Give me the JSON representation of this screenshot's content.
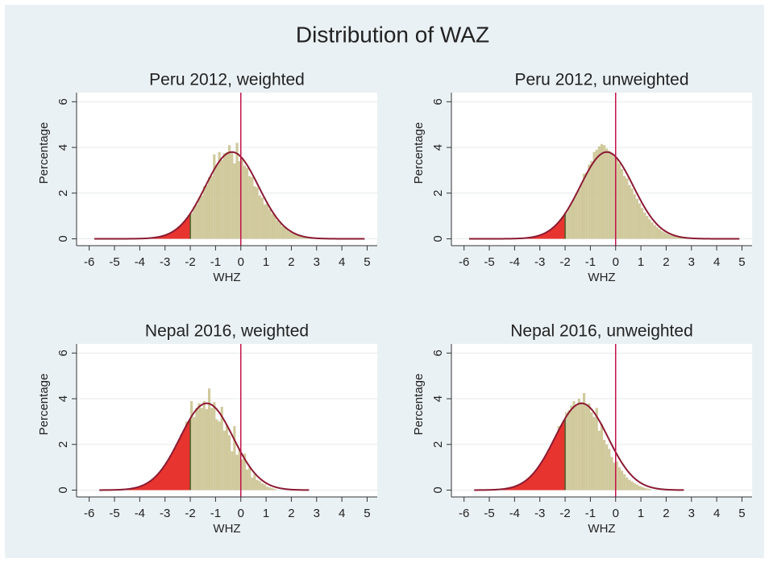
{
  "title": "Distribution of WAZ",
  "chart_data": [
    {
      "type": "histogram",
      "title": "Peru 2012, weighted",
      "xlabel": "WHZ",
      "ylabel": "Percentage",
      "bins": [
        -3.0,
        -2.9,
        -2.8,
        -2.7,
        -2.6,
        -2.5,
        -2.4,
        -2.3,
        -2.2,
        -2.1,
        -2.0,
        -1.9,
        -1.8,
        -1.7,
        -1.6,
        -1.5,
        -1.4,
        -1.3,
        -1.2,
        -1.1,
        -1.0,
        -0.9,
        -0.8,
        -0.7,
        -0.6,
        -0.5,
        -0.4,
        -0.3,
        -0.2,
        -0.1,
        0.0,
        0.1,
        0.2,
        0.3,
        0.4,
        0.5,
        0.6,
        0.7,
        0.8,
        0.9,
        1.0,
        1.1,
        1.2,
        1.3,
        1.4,
        1.5,
        1.6,
        1.7,
        1.8,
        1.9,
        2.0,
        2.1,
        2.2,
        2.3,
        2.4,
        2.5,
        2.6,
        2.7,
        2.8,
        2.9,
        3.0
      ],
      "values": [
        0.15,
        0.25,
        0.27,
        0.36,
        0.4,
        0.55,
        0.58,
        0.75,
        0.85,
        1.05,
        1.12,
        1.4,
        1.5,
        1.8,
        1.9,
        2.3,
        2.35,
        2.7,
        2.75,
        3.7,
        3.2,
        3.8,
        3.45,
        3.75,
        3.8,
        4.1,
        3.75,
        3.3,
        4.2,
        3.4,
        3.55,
        3.2,
        3.1,
        2.75,
        2.7,
        2.3,
        2.25,
        1.9,
        1.8,
        1.5,
        1.55,
        1.3,
        1.1,
        1.05,
        0.8,
        0.7,
        0.55,
        0.5,
        0.4,
        0.3,
        0.25,
        0.2,
        0.18,
        0.14,
        0.1,
        0.08,
        0.07,
        0.06,
        0.05,
        0.04
      ],
      "color": "#cbc391",
      "fit": {
        "mean": -0.35,
        "sd": 1.05,
        "range": [
          -5.8,
          4.9
        ],
        "color": "#8b1a33"
      },
      "cutoff": -2,
      "shade_color": "#e8342f",
      "reference_line": 0,
      "reference_color": "#c0144a",
      "xlim": [
        -6.5,
        5.4
      ],
      "ylim": [
        -0.3,
        6.4
      ],
      "xticks": [
        -6,
        -5,
        -4,
        -3,
        -2,
        -1,
        0,
        1,
        2,
        3,
        4,
        5
      ],
      "yticks": [
        0,
        2,
        4,
        6
      ],
      "grid": true
    },
    {
      "type": "histogram",
      "title": "Peru 2012, unweighted",
      "xlabel": "WHZ",
      "ylabel": "Percentage",
      "bins": [
        -3.0,
        -2.9,
        -2.8,
        -2.7,
        -2.6,
        -2.5,
        -2.4,
        -2.3,
        -2.2,
        -2.1,
        -2.0,
        -1.9,
        -1.8,
        -1.7,
        -1.6,
        -1.5,
        -1.4,
        -1.3,
        -1.2,
        -1.1,
        -1.0,
        -0.9,
        -0.8,
        -0.7,
        -0.6,
        -0.5,
        -0.4,
        -0.3,
        -0.2,
        -0.1,
        0.0,
        0.1,
        0.2,
        0.3,
        0.4,
        0.5,
        0.6,
        0.7,
        0.8,
        0.9,
        1.0,
        1.1,
        1.2,
        1.3,
        1.4,
        1.5,
        1.6,
        1.7,
        1.8,
        1.9,
        2.0,
        2.1,
        2.2,
        2.3,
        2.4,
        2.5,
        2.6,
        2.7,
        2.8,
        2.9,
        3.0
      ],
      "values": [
        0.16,
        0.22,
        0.28,
        0.33,
        0.42,
        0.5,
        0.6,
        0.75,
        0.85,
        1.0,
        1.15,
        1.35,
        1.55,
        1.75,
        2.0,
        2.15,
        2.4,
        2.85,
        2.9,
        3.25,
        3.4,
        3.8,
        3.9,
        4.05,
        4.15,
        4.1,
        3.95,
        3.85,
        3.75,
        3.6,
        3.5,
        3.3,
        3.05,
        2.75,
        2.65,
        2.35,
        2.2,
        1.95,
        1.75,
        1.55,
        1.35,
        1.15,
        1.0,
        0.85,
        0.72,
        0.6,
        0.5,
        0.42,
        0.33,
        0.28,
        0.22,
        0.17,
        0.14,
        0.11,
        0.08,
        0.06,
        0.05,
        0.04,
        0.03,
        0.02
      ],
      "color": "#cbc391",
      "fit": {
        "mean": -0.35,
        "sd": 1.05,
        "range": [
          -5.8,
          4.9
        ],
        "color": "#8b1a33"
      },
      "cutoff": -2,
      "shade_color": "#e8342f",
      "reference_line": 0,
      "reference_color": "#c0144a",
      "xlim": [
        -6.5,
        5.4
      ],
      "ylim": [
        -0.3,
        6.4
      ],
      "xticks": [
        -6,
        -5,
        -4,
        -3,
        -2,
        -1,
        0,
        1,
        2,
        3,
        4,
        5
      ],
      "yticks": [
        0,
        2,
        4,
        6
      ],
      "grid": true
    },
    {
      "type": "histogram",
      "title": "Nepal 2016, weighted",
      "xlabel": "WHZ",
      "ylabel": "Percentage",
      "bins": [
        -4.6,
        -4.5,
        -4.4,
        -4.3,
        -4.2,
        -4.1,
        -4.0,
        -3.9,
        -3.8,
        -3.7,
        -3.6,
        -3.5,
        -3.4,
        -3.3,
        -3.2,
        -3.1,
        -3.0,
        -2.9,
        -2.8,
        -2.7,
        -2.6,
        -2.5,
        -2.4,
        -2.3,
        -2.2,
        -2.1,
        -2.0,
        -1.9,
        -1.8,
        -1.7,
        -1.6,
        -1.5,
        -1.4,
        -1.3,
        -1.2,
        -1.1,
        -1.0,
        -0.9,
        -0.8,
        -0.7,
        -0.6,
        -0.5,
        -0.4,
        -0.3,
        -0.2,
        -0.1,
        0.0,
        0.1,
        0.2,
        0.3,
        0.4,
        0.5,
        0.6,
        0.7,
        0.8,
        0.9,
        1.0,
        1.1,
        1.2,
        1.3,
        1.4
      ],
      "values": [
        0.03,
        0.04,
        0.06,
        0.08,
        0.11,
        0.14,
        0.17,
        0.22,
        0.28,
        0.34,
        0.42,
        0.51,
        0.61,
        0.73,
        0.86,
        1.01,
        1.17,
        1.35,
        1.54,
        1.74,
        2.0,
        2.1,
        2.45,
        2.55,
        3.0,
        2.9,
        3.9,
        3.2,
        3.6,
        3.8,
        3.6,
        3.9,
        3.55,
        4.45,
        3.6,
        3.85,
        3.1,
        3.0,
        3.65,
        2.6,
        2.85,
        2.4,
        1.7,
        2.8,
        1.55,
        1.8,
        1.35,
        1.6,
        0.9,
        1.0,
        0.55,
        0.7,
        0.45,
        0.4,
        0.3,
        0.25,
        0.15,
        0.12,
        0.08,
        0.05
      ],
      "color": "#cbc391",
      "fit": {
        "mean": -1.35,
        "sd": 1.05,
        "range": [
          -5.6,
          2.7
        ],
        "color": "#8b1a33"
      },
      "cutoff": -2,
      "shade_color": "#e8342f",
      "reference_line": 0,
      "reference_color": "#c0144a",
      "xlim": [
        -6.5,
        5.4
      ],
      "ylim": [
        -0.3,
        6.4
      ],
      "xticks": [
        -6,
        -5,
        -4,
        -3,
        -2,
        -1,
        0,
        1,
        2,
        3,
        4,
        5
      ],
      "yticks": [
        0,
        2,
        4,
        6
      ],
      "grid": true
    },
    {
      "type": "histogram",
      "title": "Nepal 2016, unweighted",
      "xlabel": "WHZ",
      "ylabel": "Percentage",
      "bins": [
        -4.6,
        -4.5,
        -4.4,
        -4.3,
        -4.2,
        -4.1,
        -4.0,
        -3.9,
        -3.8,
        -3.7,
        -3.6,
        -3.5,
        -3.4,
        -3.3,
        -3.2,
        -3.1,
        -3.0,
        -2.9,
        -2.8,
        -2.7,
        -2.6,
        -2.5,
        -2.4,
        -2.3,
        -2.2,
        -2.1,
        -2.0,
        -1.9,
        -1.8,
        -1.7,
        -1.6,
        -1.5,
        -1.4,
        -1.3,
        -1.2,
        -1.1,
        -1.0,
        -0.9,
        -0.8,
        -0.7,
        -0.6,
        -0.5,
        -0.4,
        -0.3,
        -0.2,
        -0.1,
        0.0,
        0.1,
        0.2,
        0.3,
        0.4,
        0.5,
        0.6,
        0.7,
        0.8,
        0.9,
        1.0,
        1.1,
        1.2,
        1.3,
        1.4
      ],
      "values": [
        0.03,
        0.04,
        0.06,
        0.08,
        0.11,
        0.14,
        0.17,
        0.22,
        0.28,
        0.34,
        0.42,
        0.51,
        0.61,
        0.73,
        0.86,
        1.01,
        1.17,
        1.35,
        1.54,
        1.74,
        1.95,
        2.2,
        2.4,
        2.8,
        2.75,
        3.0,
        3.4,
        3.5,
        3.7,
        3.9,
        3.7,
        4.0,
        3.85,
        4.25,
        3.7,
        3.8,
        3.4,
        3.2,
        3.6,
        2.6,
        2.9,
        2.2,
        2.0,
        1.8,
        1.45,
        1.2,
        1.25,
        1.0,
        0.85,
        0.7,
        0.55,
        0.45,
        0.38,
        0.3,
        0.24,
        0.18,
        0.14,
        0.1,
        0.07,
        0.05
      ],
      "color": "#cbc391",
      "fit": {
        "mean": -1.35,
        "sd": 1.05,
        "range": [
          -5.6,
          2.7
        ],
        "color": "#8b1a33"
      },
      "cutoff": -2,
      "shade_color": "#e8342f",
      "reference_line": 0,
      "reference_color": "#c0144a",
      "xlim": [
        -6.5,
        5.4
      ],
      "ylim": [
        -0.3,
        6.4
      ],
      "xticks": [
        -6,
        -5,
        -4,
        -3,
        -2,
        -1,
        0,
        1,
        2,
        3,
        4,
        5
      ],
      "yticks": [
        0,
        2,
        4,
        6
      ],
      "grid": true
    }
  ]
}
